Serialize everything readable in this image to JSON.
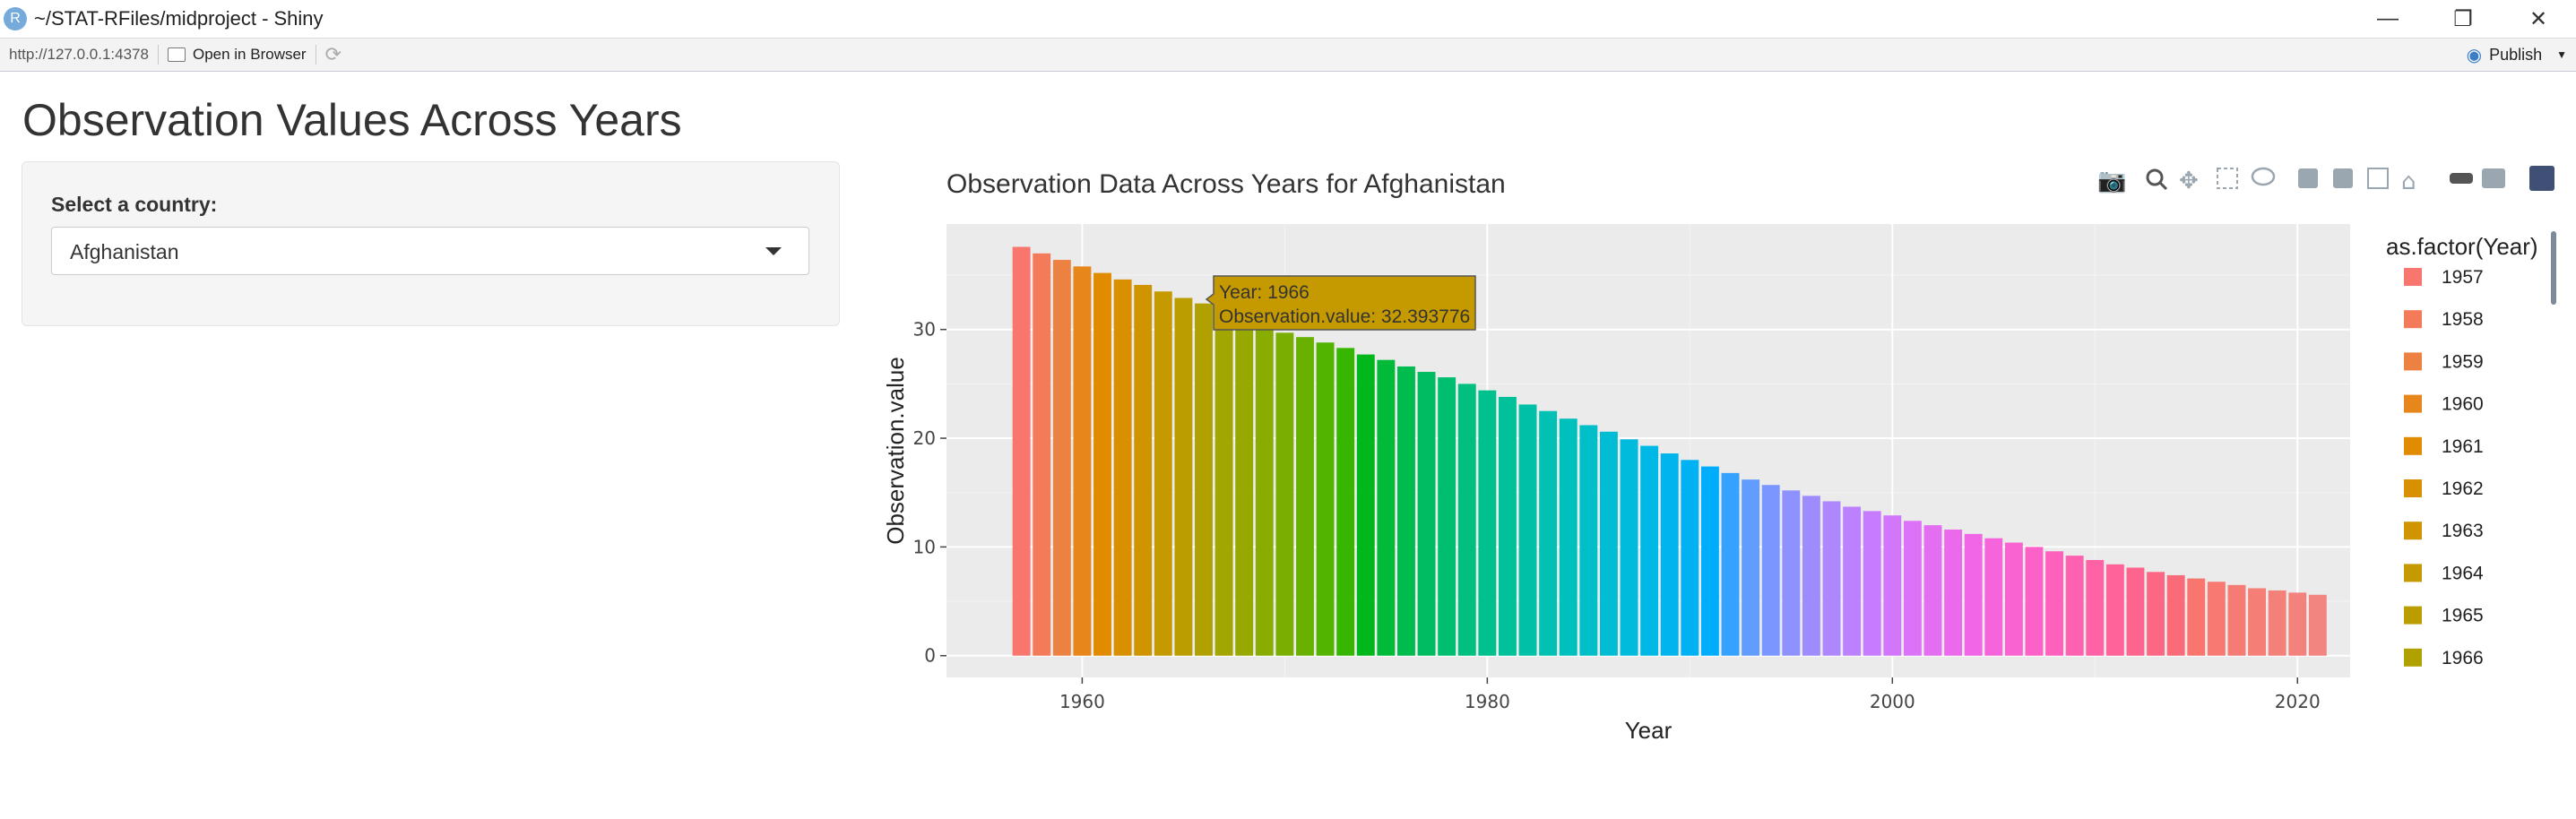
{
  "window": {
    "title": "~/STAT-RFiles/midproject - Shiny",
    "app_icon_letter": "R",
    "minimize": "—",
    "restore": "❐",
    "close": "✕"
  },
  "toolbar": {
    "url": "http://127.0.0.1:4378",
    "open_in_browser": "Open in Browser",
    "publish": "Publish",
    "refresh_icon": "refresh-icon"
  },
  "page": {
    "title": "Observation Values Across Years"
  },
  "sidebar": {
    "select_label": "Select a country:",
    "selected_country": "Afghanistan"
  },
  "plot_toolbar": {
    "icons": [
      "camera-icon",
      "zoom-icon",
      "pan-icon",
      "box-select-icon",
      "lasso-icon",
      "zoom-in-icon",
      "zoom-out-icon",
      "autoscale-icon",
      "reset-axes-icon",
      "spike-lines-icon",
      "compare-hover-icon",
      "plotly-logo-icon"
    ]
  },
  "tooltip": {
    "line1": "Year: 1966",
    "line2": "Observation.value: 32.393776"
  },
  "chart_data": {
    "type": "bar",
    "title": "Observation Data Across Years for Afghanistan",
    "xlabel": "Year",
    "ylabel": "Observation.value",
    "x": [
      1957,
      1958,
      1959,
      1960,
      1961,
      1962,
      1963,
      1964,
      1965,
      1966,
      1967,
      1968,
      1969,
      1970,
      1971,
      1972,
      1973,
      1974,
      1975,
      1976,
      1977,
      1978,
      1979,
      1980,
      1981,
      1982,
      1983,
      1984,
      1985,
      1986,
      1987,
      1988,
      1989,
      1990,
      1991,
      1992,
      1993,
      1994,
      1995,
      1996,
      1997,
      1998,
      1999,
      2000,
      2001,
      2002,
      2003,
      2004,
      2005,
      2006,
      2007,
      2008,
      2009,
      2010,
      2011,
      2012,
      2013,
      2014,
      2015,
      2016,
      2017,
      2018,
      2019,
      2020,
      2021
    ],
    "values": [
      37.6,
      37.0,
      36.4,
      35.8,
      35.2,
      34.6,
      34.1,
      33.5,
      32.9,
      32.393776,
      31.3,
      30.7,
      30.2,
      29.7,
      29.3,
      28.8,
      28.3,
      27.7,
      27.2,
      26.6,
      26.1,
      25.6,
      25.0,
      24.4,
      23.8,
      23.1,
      22.5,
      21.8,
      21.2,
      20.6,
      19.9,
      19.3,
      18.6,
      18.0,
      17.4,
      16.8,
      16.2,
      15.7,
      15.2,
      14.7,
      14.2,
      13.7,
      13.3,
      12.9,
      12.4,
      12.0,
      11.6,
      11.2,
      10.8,
      10.4,
      10.0,
      9.6,
      9.2,
      8.8,
      8.4,
      8.1,
      7.7,
      7.4,
      7.1,
      6.8,
      6.5,
      6.2,
      6.0,
      5.8,
      5.6
    ],
    "x_ticks": [
      1960,
      1980,
      2000,
      2020
    ],
    "y_ticks": [
      0,
      10,
      20,
      30
    ],
    "xlim": [
      1953.3,
      2022.6
    ],
    "ylim": [
      -2.0,
      39.7
    ],
    "grid": true,
    "legend": {
      "title": "as.factor(Year)",
      "placement": "right",
      "visible_entries": [
        "1957",
        "1958",
        "1959",
        "1960",
        "1961",
        "1962",
        "1963",
        "1964",
        "1965",
        "1966"
      ]
    },
    "colors": [
      "#F8766D",
      "#F37B59",
      "#ED8141",
      "#E7861B",
      "#E08B00",
      "#D89000",
      "#CF9400",
      "#C59900",
      "#BB9D00",
      "#B0A100",
      "#A3A500",
      "#97A800",
      "#89AC00",
      "#7AAE00",
      "#68B100",
      "#53B400",
      "#37B600",
      "#00B81B",
      "#00BA38",
      "#00BB4E",
      "#00BC60",
      "#00BE70",
      "#00BF7F",
      "#00C08D",
      "#00C19A",
      "#00C1A7",
      "#00C1B3",
      "#00C0BE",
      "#00BFC9",
      "#00BDD3",
      "#00BBDC",
      "#00B8E5",
      "#00B5EC",
      "#00B1F3",
      "#00ACFC",
      "#35A2FF",
      "#619CFF",
      "#7997FF",
      "#8D92FF",
      "#9E8CFF",
      "#AE87FF",
      "#BC81FF",
      "#C77CFF",
      "#D277FC",
      "#DB72F8",
      "#E36EF2",
      "#EA6AEB",
      "#F066E4",
      "#F564DB",
      "#F962D1",
      "#FC61C7",
      "#FE61BC",
      "#FF61B1",
      "#FF62A5",
      "#FF6399",
      "#FE658E",
      "#FC6883",
      "#F96B78",
      "#F8766D",
      "#F77971",
      "#F67B74",
      "#F57E77",
      "#F4807A",
      "#F3827D",
      "#F28580"
    ]
  }
}
